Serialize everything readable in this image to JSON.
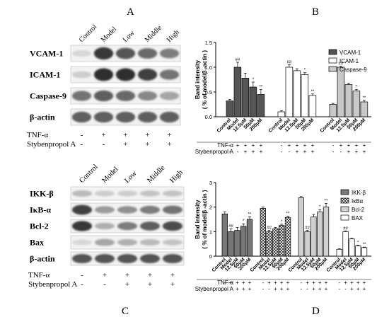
{
  "panels": {
    "A": "A",
    "B": "B",
    "C": "C",
    "D": "D"
  },
  "western_A": {
    "lanes": [
      "Control",
      "Model",
      "Low",
      "Middle",
      "High"
    ],
    "rows": [
      {
        "label": "VCAM-1",
        "intensity": [
          0.1,
          0.9,
          0.75,
          0.65,
          0.55
        ]
      },
      {
        "label": "ICAM-1",
        "intensity": [
          0.15,
          0.95,
          0.95,
          0.85,
          0.6
        ]
      },
      {
        "label": "Caspase-9",
        "intensity": [
          0.6,
          0.7,
          0.65,
          0.5,
          0.35
        ]
      },
      {
        "label": "β-actin",
        "intensity": [
          0.7,
          0.7,
          0.7,
          0.7,
          0.7
        ]
      }
    ],
    "treatments": [
      {
        "label": "TNF-α",
        "marks": [
          "-",
          "+",
          "+",
          "+",
          "+"
        ]
      },
      {
        "label": "Stybenpropol A",
        "marks": [
          "-",
          "-",
          "+",
          "+",
          "+"
        ]
      }
    ]
  },
  "western_C": {
    "lanes": [
      "Control",
      "Model",
      "Low",
      "Middle",
      "High"
    ],
    "rows": [
      {
        "label": "IKK-β",
        "intensity": [
          0.25,
          0.15,
          0.15,
          0.2,
          0.2
        ]
      },
      {
        "label": "IκB-α",
        "intensity": [
          0.85,
          0.4,
          0.45,
          0.55,
          0.6
        ]
      },
      {
        "label": "Bcl-2",
        "intensity": [
          0.9,
          0.3,
          0.55,
          0.7,
          0.8
        ]
      },
      {
        "label": "Bax",
        "intensity": [
          0.1,
          0.35,
          0.3,
          0.25,
          0.2
        ]
      },
      {
        "label": "β-actin",
        "intensity": [
          0.75,
          0.75,
          0.75,
          0.75,
          0.75
        ]
      }
    ],
    "treatments": [
      {
        "label": "TNF-α",
        "marks": [
          "-",
          "+",
          "+",
          "+",
          "+"
        ]
      },
      {
        "label": "Stybenpropol A",
        "marks": [
          "-",
          "-",
          "+",
          "+",
          "+"
        ]
      }
    ]
  },
  "chart_data": [
    {
      "type": "bar",
      "panel": "B",
      "ylabel_lines": [
        "Band intensity",
        "( % of model/β -actin )"
      ],
      "ylim": [
        0,
        1.5
      ],
      "yticks": [
        "0.0",
        "0.5",
        "1.0",
        "1.5"
      ],
      "categories": [
        "Control",
        "Model",
        "12.5μM",
        "50μM",
        "200μM"
      ],
      "series": [
        {
          "name": "VCAM-1",
          "fill": "#555555",
          "values": [
            0.32,
            1.0,
            0.78,
            0.6,
            0.45
          ],
          "errors": [
            0.03,
            0.1,
            0.1,
            0.1,
            0.1
          ],
          "sig": [
            "",
            "##",
            "",
            "*",
            "**"
          ]
        },
        {
          "name": "ICAM-1",
          "fill": "#ffffff",
          "values": [
            0.1,
            1.0,
            0.93,
            0.85,
            0.43
          ],
          "errors": [
            0.02,
            0.05,
            0.04,
            0.04,
            0.03
          ],
          "sig": [
            "",
            "##",
            "",
            "*",
            "**"
          ]
        },
        {
          "name": "Caspase-9",
          "fill": "#c8c8c8",
          "values": [
            0.25,
            1.0,
            0.65,
            0.52,
            0.3
          ],
          "errors": [
            0.02,
            0.02,
            0.03,
            0.03,
            0.03
          ],
          "sig": [
            "",
            "##",
            "",
            "*",
            "**"
          ]
        }
      ],
      "treatments": [
        {
          "label": "TNF-α",
          "marks": [
            "-",
            "+",
            "+",
            "+",
            "+"
          ]
        },
        {
          "label": "Stybenpropol A",
          "marks": [
            "-",
            "-",
            "+",
            "+",
            "+"
          ]
        }
      ],
      "legend_position": "top-right"
    },
    {
      "type": "bar",
      "panel": "D",
      "ylabel_lines": [
        "Band intensity",
        "( % of model/β -actin )"
      ],
      "ylim": [
        0,
        3
      ],
      "yticks": [
        "0",
        "1",
        "2",
        "3"
      ],
      "categories": [
        "Control",
        "Model",
        "12.5μM",
        "50μM",
        "200μM"
      ],
      "series": [
        {
          "name": "IKK-β",
          "fill": "#777777",
          "values": [
            1.72,
            1.0,
            1.05,
            1.22,
            1.5
          ],
          "errors": [
            0.08,
            0.12,
            0.12,
            0.1,
            0.1
          ],
          "sig": [
            "",
            "##",
            "",
            "*",
            "**"
          ]
        },
        {
          "name": "IκBα",
          "fill": "pattern",
          "values": [
            1.95,
            1.0,
            1.12,
            1.25,
            1.58
          ],
          "errors": [
            0.05,
            0.05,
            0.05,
            0.05,
            0.05
          ],
          "sig": [
            "",
            "##",
            "",
            "*",
            "**"
          ]
        },
        {
          "name": "Bcl-2",
          "fill": "#d0d0d0",
          "values": [
            2.38,
            1.0,
            1.6,
            1.8,
            2.0
          ],
          "errors": [
            0.05,
            0.05,
            0.1,
            0.1,
            0.15
          ],
          "sig": [
            "",
            "##",
            "",
            "*",
            "**"
          ]
        },
        {
          "name": "BAX",
          "fill": "#ffffff",
          "values": [
            0.28,
            1.0,
            0.7,
            0.42,
            0.35
          ],
          "errors": [
            0.02,
            0.03,
            0.03,
            0.03,
            0.02
          ],
          "sig": [
            "",
            "##",
            "",
            "*",
            "**"
          ]
        }
      ],
      "treatments": [
        {
          "label": "TNF-α",
          "marks": [
            "-",
            "+",
            "+",
            "+",
            "+"
          ]
        },
        {
          "label": "Stybenpropol A",
          "marks": [
            "-",
            "-",
            "+",
            "+",
            "+"
          ]
        }
      ],
      "legend_position": "top-right"
    }
  ]
}
